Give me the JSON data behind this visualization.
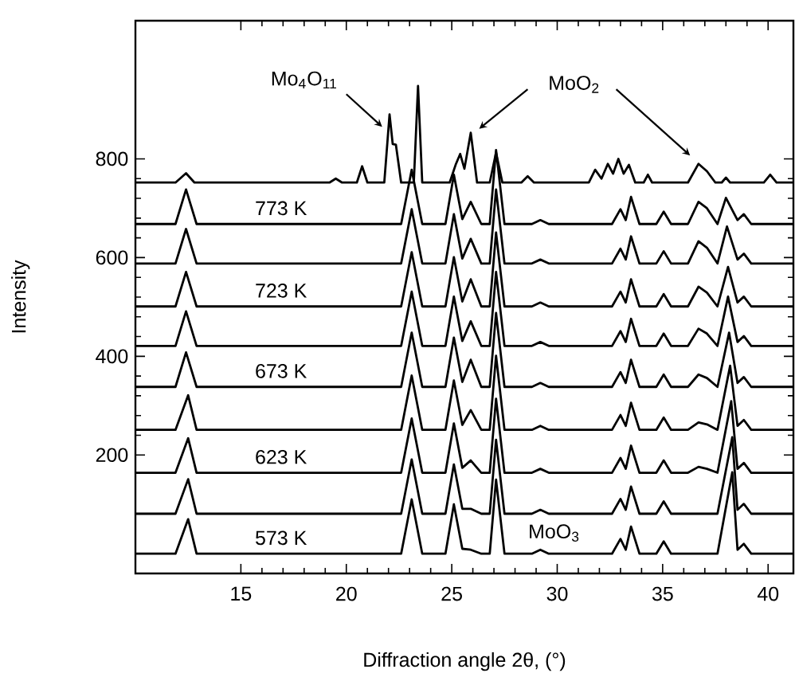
{
  "chart_data": {
    "type": "line",
    "xlabel": "Diffraction angle 2θ, (°)",
    "ylabel": "Intensity",
    "xlim": [
      10,
      41.2
    ],
    "ylim": [
      -40,
      1080
    ],
    "xticks": [
      15,
      20,
      25,
      30,
      35,
      40
    ],
    "yticks": [
      200,
      400,
      600,
      800
    ],
    "marker": "none",
    "line_style": "solid",
    "annotations": [
      {
        "text": "Mo$_{4}$O$_{11}$",
        "x": 21.7,
        "y": 865
      },
      "MoO$_{2}$",
      "MoO$_{3}$"
    ],
    "series": [
      {
        "name": "573 K",
        "color": "#000000",
        "x": [
          10,
          11.9,
          12.5,
          12.9,
          22.6,
          23.1,
          23.6,
          24.7,
          25.1,
          25.5,
          25.9,
          26.4,
          26.8,
          27.1,
          27.5,
          28.8,
          29.2,
          29.6,
          32.6,
          33.0,
          33.25,
          33.5,
          33.9,
          34.7,
          35.05,
          35.4,
          36.2,
          36.7,
          37.1,
          37.6,
          38.3,
          38.55,
          38.85,
          39.2,
          41.2
        ],
        "values": [
          0,
          0,
          70,
          0,
          0,
          110,
          0,
          0,
          100,
          10,
          8,
          0,
          0,
          150,
          0,
          0,
          8,
          0,
          0,
          30,
          8,
          55,
          0,
          0,
          25,
          0,
          0,
          0,
          0,
          0,
          165,
          8,
          20,
          0,
          0
        ]
      },
      {
        "color": "#000000",
        "x": [
          10,
          11.9,
          12.5,
          12.9,
          22.6,
          23.1,
          23.6,
          24.7,
          25.1,
          25.5,
          25.9,
          26.4,
          26.8,
          27.1,
          27.5,
          28.8,
          29.2,
          29.6,
          32.6,
          33.0,
          33.25,
          33.5,
          33.9,
          34.7,
          35.05,
          35.4,
          36.2,
          36.7,
          37.1,
          37.6,
          38.3,
          38.55,
          38.85,
          39.2,
          41.2
        ],
        "values": [
          81,
          81,
          151,
          81,
          81,
          191,
          81,
          81,
          181,
          91,
          91,
          81,
          81,
          231,
          81,
          81,
          89,
          81,
          81,
          111,
          89,
          136,
          81,
          81,
          106,
          81,
          81,
          81,
          81,
          81,
          236,
          89,
          101,
          81,
          81
        ]
      },
      {
        "name": "623 K",
        "color": "#000000",
        "x": [
          10,
          11.9,
          12.5,
          12.9,
          22.6,
          23.1,
          23.6,
          24.7,
          25.1,
          25.5,
          25.9,
          26.4,
          26.8,
          27.1,
          27.5,
          28.8,
          29.2,
          29.6,
          32.6,
          33.0,
          33.25,
          33.5,
          33.9,
          34.7,
          35.05,
          35.4,
          36.2,
          36.7,
          37.1,
          37.6,
          38.25,
          38.55,
          38.85,
          39.2,
          41.2
        ],
        "values": [
          164,
          164,
          234,
          164,
          164,
          274,
          164,
          164,
          264,
          174,
          189,
          164,
          164,
          314,
          164,
          164,
          172,
          164,
          164,
          194,
          172,
          219,
          164,
          164,
          189,
          164,
          164,
          176,
          172,
          164,
          309,
          172,
          184,
          164,
          164
        ]
      },
      {
        "color": "#000000",
        "x": [
          10,
          11.9,
          12.5,
          12.9,
          22.6,
          23.1,
          23.6,
          24.7,
          25.1,
          25.5,
          25.9,
          26.4,
          26.8,
          27.1,
          27.5,
          28.8,
          29.2,
          29.6,
          32.6,
          33.0,
          33.25,
          33.5,
          33.9,
          34.7,
          35.05,
          35.4,
          36.2,
          36.7,
          37.1,
          37.6,
          38.2,
          38.55,
          38.85,
          39.2,
          41.2
        ],
        "values": [
          251,
          251,
          321,
          251,
          251,
          361,
          251,
          251,
          351,
          261,
          291,
          251,
          251,
          401,
          251,
          251,
          259,
          251,
          251,
          281,
          259,
          306,
          251,
          251,
          276,
          251,
          251,
          266,
          262,
          251,
          381,
          259,
          271,
          251,
          251
        ]
      },
      {
        "name": "673 K",
        "color": "#000000",
        "x": [
          10,
          11.9,
          12.4,
          12.9,
          22.6,
          23.1,
          23.6,
          24.7,
          25.1,
          25.5,
          25.9,
          26.4,
          26.8,
          27.1,
          27.5,
          28.8,
          29.2,
          29.6,
          32.6,
          33.0,
          33.25,
          33.5,
          33.9,
          34.7,
          35.05,
          35.4,
          36.2,
          36.7,
          37.1,
          37.6,
          38.15,
          38.55,
          38.85,
          39.2,
          41.2
        ],
        "values": [
          338,
          338,
          408,
          338,
          338,
          448,
          338,
          338,
          438,
          348,
          393,
          338,
          338,
          488,
          338,
          338,
          346,
          338,
          338,
          368,
          346,
          393,
          338,
          338,
          363,
          338,
          338,
          363,
          356,
          338,
          448,
          346,
          358,
          338,
          338
        ]
      },
      {
        "color": "#000000",
        "x": [
          10,
          11.9,
          12.4,
          12.9,
          22.6,
          23.1,
          23.6,
          24.7,
          25.1,
          25.5,
          25.9,
          26.4,
          26.8,
          27.1,
          27.5,
          28.8,
          29.2,
          29.6,
          32.6,
          33.0,
          33.25,
          33.5,
          33.9,
          34.7,
          35.05,
          35.4,
          36.2,
          36.7,
          37.1,
          37.6,
          38.1,
          38.55,
          38.85,
          39.2,
          41.2
        ],
        "values": [
          421,
          421,
          491,
          421,
          421,
          531,
          421,
          421,
          521,
          431,
          471,
          421,
          421,
          571,
          421,
          421,
          429,
          421,
          421,
          451,
          429,
          476,
          421,
          421,
          446,
          421,
          421,
          456,
          446,
          421,
          521,
          429,
          441,
          421,
          421
        ]
      },
      {
        "name": "723 K",
        "color": "#000000",
        "x": [
          10,
          11.9,
          12.4,
          12.9,
          22.6,
          23.1,
          23.6,
          24.7,
          25.1,
          25.5,
          25.9,
          26.4,
          26.8,
          27.1,
          27.5,
          28.8,
          29.2,
          29.6,
          32.6,
          33.0,
          33.25,
          33.5,
          33.9,
          34.7,
          35.05,
          35.4,
          36.2,
          36.7,
          37.1,
          37.6,
          38.1,
          38.55,
          38.85,
          39.2,
          41.2
        ],
        "values": [
          501,
          501,
          571,
          501,
          501,
          611,
          501,
          501,
          601,
          511,
          556,
          501,
          501,
          651,
          501,
          501,
          509,
          501,
          501,
          531,
          509,
          556,
          501,
          501,
          526,
          501,
          501,
          541,
          529,
          501,
          581,
          509,
          521,
          501,
          501
        ]
      },
      {
        "color": "#000000",
        "x": [
          10,
          11.9,
          12.4,
          12.9,
          22.6,
          23.1,
          23.6,
          24.7,
          25.1,
          25.5,
          25.9,
          26.4,
          26.8,
          27.1,
          27.5,
          28.8,
          29.2,
          29.6,
          32.6,
          33.0,
          33.25,
          33.5,
          33.9,
          34.7,
          35.05,
          35.4,
          36.2,
          36.7,
          37.1,
          37.6,
          38.05,
          38.55,
          38.85,
          39.2,
          41.2
        ],
        "values": [
          588,
          588,
          658,
          588,
          588,
          698,
          588,
          588,
          688,
          598,
          638,
          588,
          588,
          738,
          588,
          588,
          596,
          588,
          588,
          618,
          596,
          643,
          588,
          588,
          613,
          588,
          588,
          633,
          620,
          588,
          663,
          596,
          608,
          588,
          588
        ]
      },
      {
        "name": "773 K",
        "color": "#000000",
        "x": [
          10,
          11.9,
          12.4,
          12.9,
          22.6,
          23.1,
          23.6,
          24.7,
          25.1,
          25.5,
          25.9,
          26.4,
          26.8,
          27.1,
          27.5,
          28.8,
          29.2,
          29.6,
          32.6,
          33.0,
          33.25,
          33.5,
          33.9,
          34.7,
          35.05,
          35.4,
          36.2,
          36.7,
          37.1,
          37.6,
          38.0,
          38.55,
          38.85,
          39.2,
          41.2
        ],
        "values": [
          668,
          668,
          738,
          668,
          668,
          778,
          668,
          668,
          768,
          678,
          713,
          668,
          668,
          818,
          668,
          668,
          676,
          668,
          668,
          698,
          676,
          723,
          668,
          668,
          693,
          668,
          668,
          713,
          700,
          668,
          721,
          676,
          688,
          668,
          668
        ]
      },
      {
        "color": "#000000",
        "x": [
          10,
          11.9,
          12.4,
          12.8,
          19.2,
          19.5,
          19.8,
          20.5,
          20.75,
          21.0,
          21.8,
          22.05,
          22.2,
          22.35,
          22.6,
          23.2,
          23.4,
          23.6,
          24.9,
          25.2,
          25.4,
          25.6,
          25.9,
          26.2,
          26.8,
          27.1,
          27.4,
          28.3,
          28.6,
          28.9,
          31.5,
          31.8,
          32.1,
          32.4,
          32.65,
          32.9,
          33.15,
          33.4,
          33.7,
          34.1,
          34.3,
          34.5,
          36.2,
          36.7,
          37.1,
          37.5,
          37.8,
          38.0,
          38.2,
          39.8,
          40.1,
          40.4,
          41.2
        ],
        "values": [
          752,
          752,
          771,
          752,
          752,
          760,
          752,
          752,
          785,
          752,
          752,
          890,
          830,
          829,
          752,
          752,
          948,
          752,
          752,
          790,
          810,
          780,
          853,
          752,
          752,
          813,
          752,
          752,
          765,
          752,
          752,
          778,
          760,
          790,
          770,
          800,
          770,
          788,
          752,
          752,
          768,
          752,
          752,
          790,
          775,
          752,
          752,
          762,
          752,
          752,
          768,
          752,
          752
        ]
      }
    ]
  }
}
